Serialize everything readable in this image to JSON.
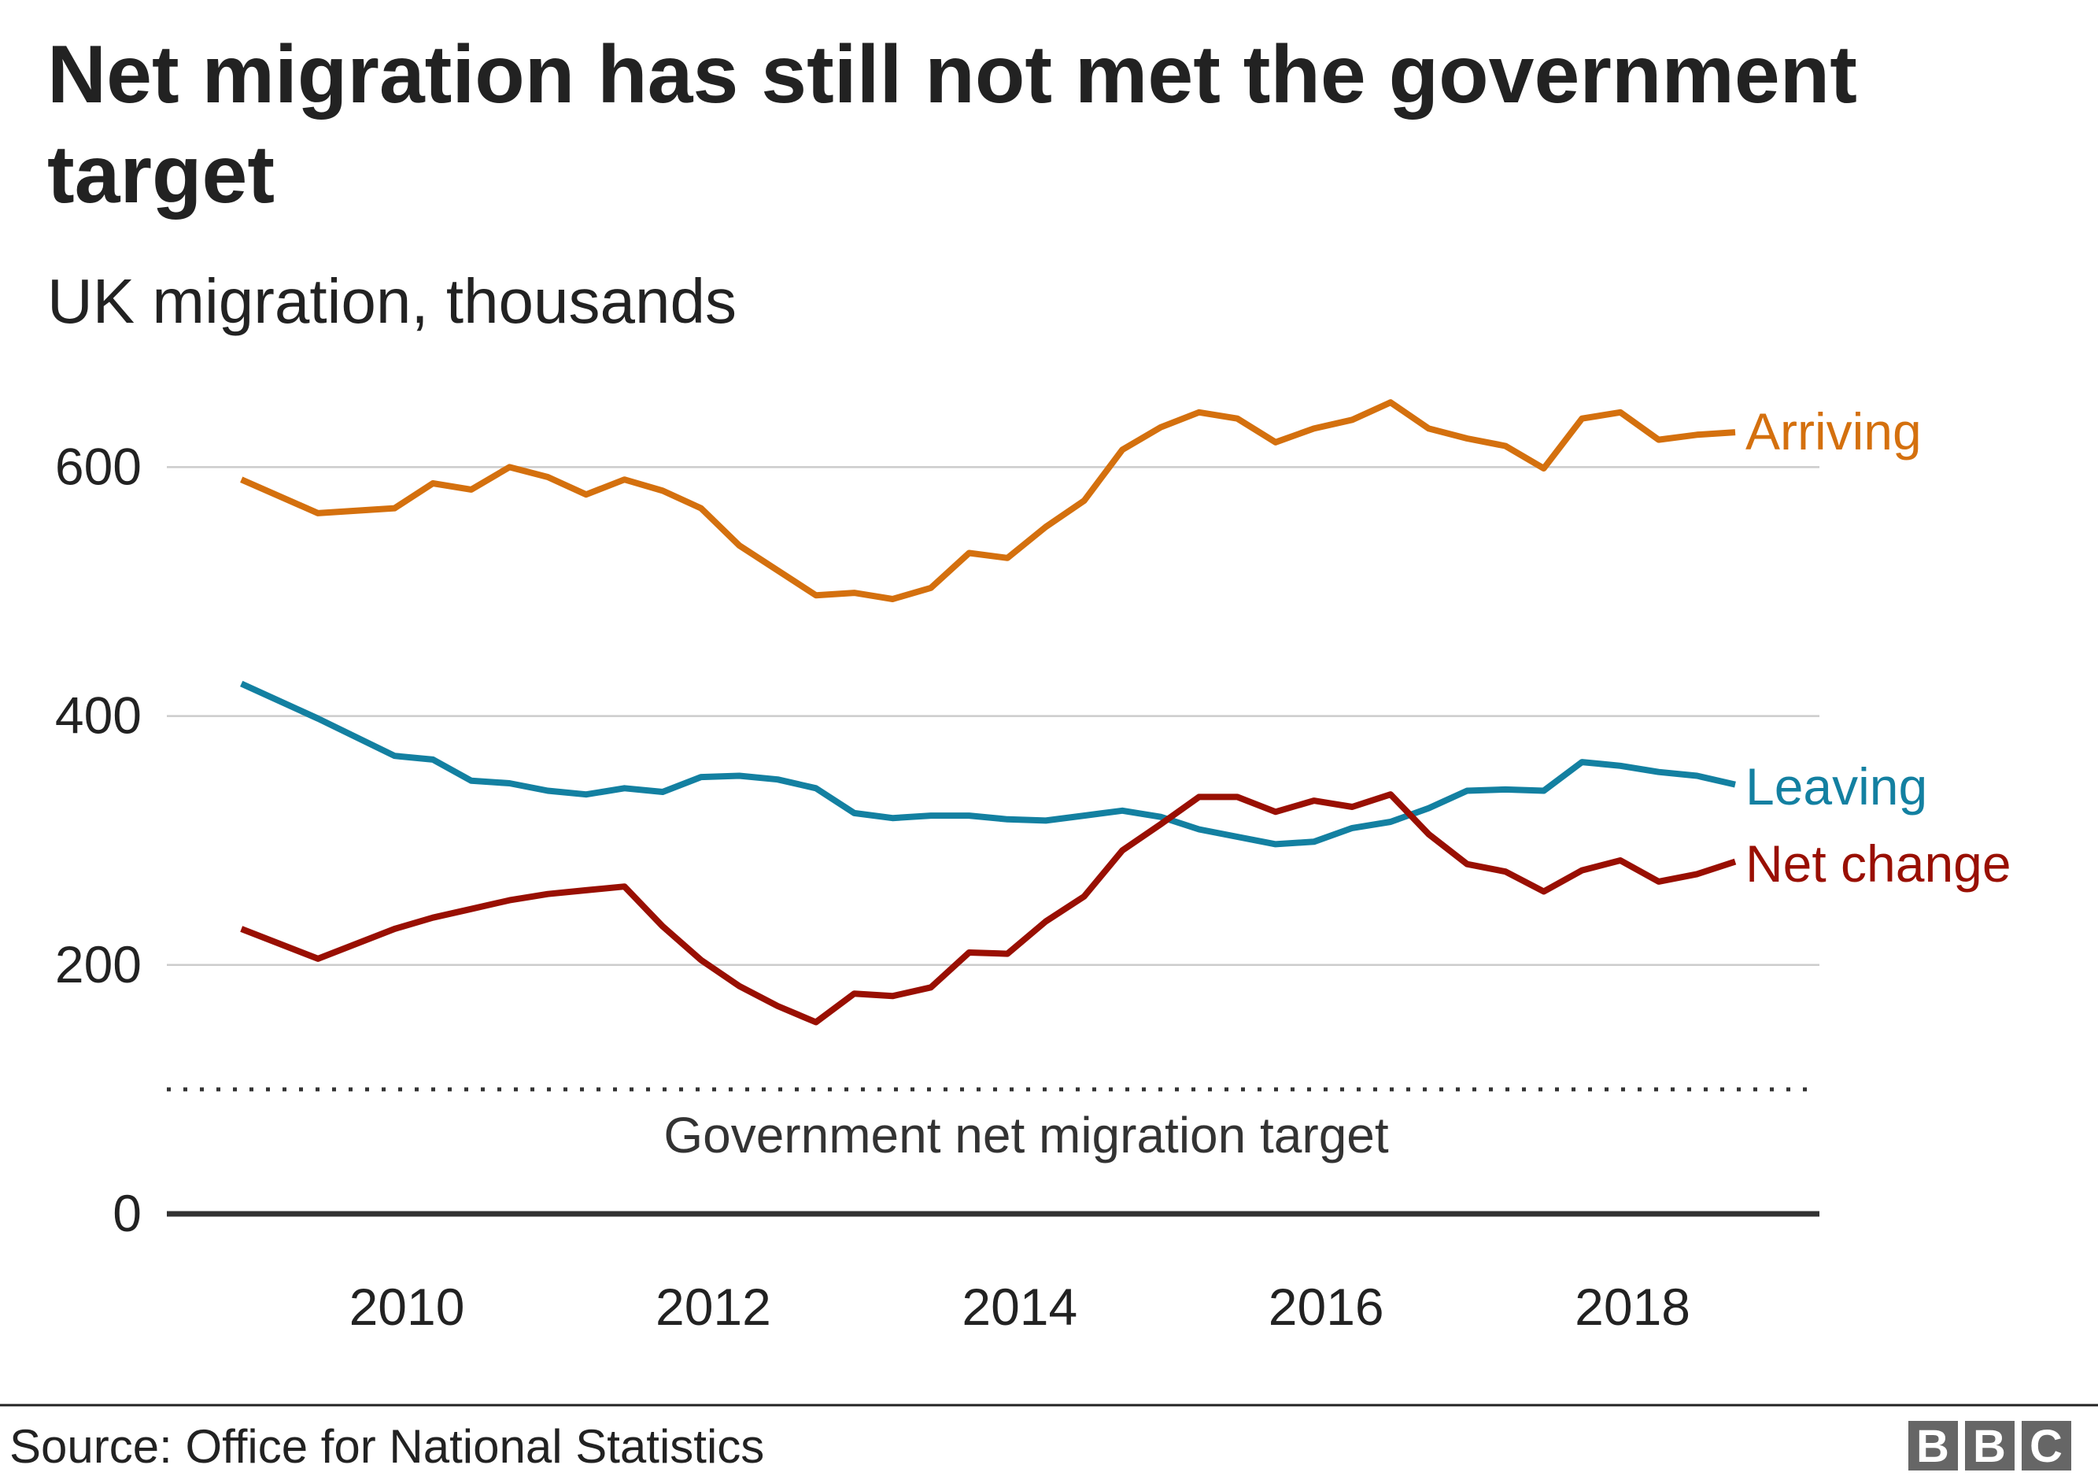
{
  "chart_data": {
    "type": "line",
    "title": "Net migration has still not met the government target",
    "subtitle": "UK migration, thousands",
    "xlabel": "",
    "ylabel": "",
    "ylim": [
      0,
      650
    ],
    "xlim": [
      2008.6,
      2019.3
    ],
    "yticks": [
      0,
      200,
      400,
      600
    ],
    "ytick_labels": [
      "0",
      "200",
      "400",
      "600"
    ],
    "xticks": [
      2010,
      2012,
      2014,
      2016,
      2018
    ],
    "xtick_labels": [
      "2010",
      "2012",
      "2014",
      "2016",
      "2018"
    ],
    "grid": "horizontal",
    "legend": "inline labels at line ends (right)",
    "x": [
      2008.92,
      2009.42,
      2009.92,
      2010.17,
      2010.42,
      2010.67,
      2010.92,
      2011.17,
      2011.42,
      2011.67,
      2011.92,
      2012.17,
      2012.42,
      2012.67,
      2012.92,
      2013.17,
      2013.42,
      2013.67,
      2013.92,
      2014.17,
      2014.42,
      2014.67,
      2014.92,
      2015.17,
      2015.42,
      2015.67,
      2015.92,
      2016.17,
      2016.42,
      2016.67,
      2016.92,
      2017.17,
      2017.42,
      2017.67,
      2017.92,
      2018.17,
      2018.42,
      2018.67
    ],
    "series": [
      {
        "name": "Arriving",
        "color": "#d4700e",
        "values": [
          590,
          563,
          567,
          587,
          582,
          600,
          592,
          578,
          590,
          581,
          567,
          537,
          517,
          497,
          499,
          494,
          503,
          531,
          527,
          552,
          573,
          614,
          632,
          644,
          639,
          620,
          631,
          638,
          652,
          631,
          623,
          617,
          599,
          639,
          644,
          622,
          626,
          628
        ]
      },
      {
        "name": "Leaving",
        "color": "#1380a1",
        "values": [
          426,
          398,
          368,
          365,
          348,
          346,
          340,
          337,
          342,
          339,
          351,
          352,
          349,
          342,
          322,
          318,
          320,
          320,
          317,
          316,
          320,
          324,
          319,
          309,
          303,
          297,
          299,
          310,
          315,
          326,
          340,
          341,
          340,
          363,
          360,
          355,
          352,
          345
        ]
      },
      {
        "name": "Net change",
        "color": "#990f02",
        "values": [
          229,
          205,
          229,
          238,
          245,
          252,
          257,
          260,
          263,
          231,
          204,
          183,
          167,
          154,
          177,
          175,
          182,
          210,
          209,
          235,
          255,
          292,
          313,
          335,
          335,
          323,
          332,
          327,
          337,
          305,
          281,
          275,
          259,
          276,
          284,
          267,
          273,
          283
        ]
      }
    ],
    "annotations": [
      {
        "text": "Government net migration target",
        "y": 100,
        "style": "dotted line"
      }
    ]
  },
  "footer": {
    "source": "Source: Office for National Statistics",
    "logo": [
      "B",
      "B",
      "C"
    ]
  },
  "colors": {
    "axis": "#333333",
    "grid": "#cccccc",
    "text": "#222222",
    "logo_bg": "#666666"
  }
}
